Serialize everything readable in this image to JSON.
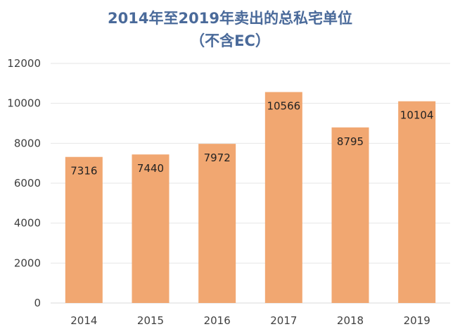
{
  "chart_data": {
    "type": "bar",
    "title": "2014年至2019年卖出的总私宅单位",
    "subtitle": "（不含EC）",
    "categories": [
      "2014",
      "2015",
      "2016",
      "2017",
      "2018",
      "2019"
    ],
    "values": [
      7316,
      7440,
      7972,
      10566,
      8795,
      10104
    ],
    "data_labels": [
      "7316",
      "7440",
      "7972",
      "10566",
      "8795",
      "10104"
    ],
    "y_ticks": [
      "0",
      "2000",
      "4000",
      "6000",
      "8000",
      "10000",
      "12000"
    ],
    "ylim": [
      0,
      12000
    ],
    "xlabel": "",
    "ylabel": "",
    "grid": true,
    "legend": "none",
    "bar_color": "#f1a771",
    "grid_color": "#e6e6e6"
  }
}
